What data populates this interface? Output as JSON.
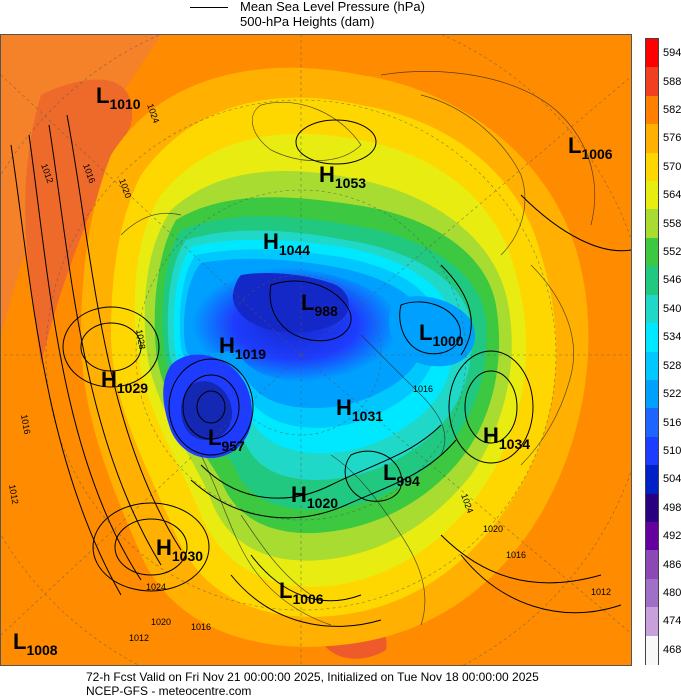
{
  "header": {
    "line1": "Mean Sea Level Pressure (hPa)",
    "line2": "500-hPa Heights (dam)"
  },
  "footer": {
    "valid_line": "72-h Fcst Valid on Fri Nov 21 00:00:00 2025, Initialized on Tue Nov 18 00:00:00 2025",
    "source_line": "NCEP-GFS - meteocentre.com"
  },
  "colorbar": {
    "labels": [
      "594",
      "588",
      "582",
      "576",
      "570",
      "564",
      "558",
      "552",
      "546",
      "540",
      "534",
      "528",
      "522",
      "516",
      "510",
      "504",
      "498",
      "492",
      "486",
      "480",
      "474",
      "468"
    ],
    "colors": [
      "#ff0000",
      "#f04020",
      "#ff7f00",
      "#ffb000",
      "#ffd700",
      "#e8ec10",
      "#a8dc30",
      "#3cc840",
      "#20c880",
      "#20d8c8",
      "#00e8ff",
      "#00c8ff",
      "#00a0ff",
      "#1e64ff",
      "#1e3cff",
      "#0020c8",
      "#280080",
      "#6400a0",
      "#8c48b4",
      "#a070c8",
      "#c8a0dc",
      "#f8f8f8"
    ]
  },
  "map": {
    "highs": [
      {
        "label": "H",
        "value": "1053"
      },
      {
        "label": "H",
        "value": "1044"
      },
      {
        "label": "H",
        "value": "1019"
      },
      {
        "label": "H",
        "value": "1029"
      },
      {
        "label": "H",
        "value": "1031"
      },
      {
        "label": "H",
        "value": "1034"
      },
      {
        "label": "H",
        "value": "1020"
      },
      {
        "label": "H",
        "value": "1030"
      }
    ],
    "lows": [
      {
        "label": "L",
        "value": "1010"
      },
      {
        "label": "L",
        "value": "1006"
      },
      {
        "label": "L",
        "value": "988"
      },
      {
        "label": "L",
        "value": "1000"
      },
      {
        "label": "L",
        "value": "957"
      },
      {
        "label": "L",
        "value": "994"
      },
      {
        "label": "L",
        "value": "1006"
      },
      {
        "label": "L",
        "value": "1008"
      }
    ],
    "isobar_labels": [
      "1012",
      "1016",
      "1020",
      "1024",
      "1028",
      "1016",
      "1012",
      "1020",
      "1024",
      "1016",
      "1012",
      "1016",
      "1012",
      "1020",
      "1016",
      "1024"
    ]
  }
}
